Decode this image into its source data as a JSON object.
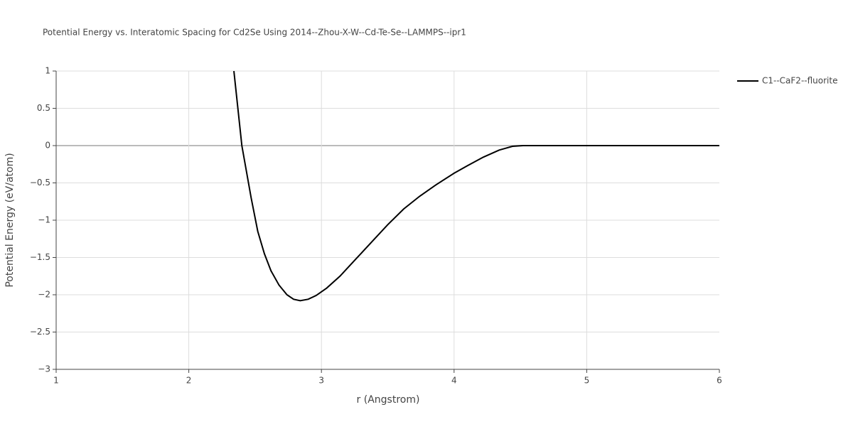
{
  "chart_data": {
    "type": "line",
    "title": "Potential Energy vs. Interatomic Spacing for Cd2Se Using 2014--Zhou-X-W--Cd-Te-Se--LAMMPS--ipr1",
    "x_label": "r (Angstrom)",
    "y_label": "Potential Energy (eV/atom)",
    "x": [
      2.34,
      2.37,
      2.4,
      2.43,
      2.47,
      2.52,
      2.57,
      2.62,
      2.68,
      2.74,
      2.79,
      2.84,
      2.9,
      2.96,
      3.04,
      3.14,
      3.26,
      3.38,
      3.5,
      3.62,
      3.74,
      3.86,
      4.0,
      4.1,
      4.22,
      4.34,
      4.44,
      4.52,
      6.0
    ],
    "series": [
      {
        "name": "C1--CaF2--fluorite",
        "color": "#000000",
        "values": [
          1.0,
          0.5,
          0.0,
          -0.3,
          -0.7,
          -1.15,
          -1.45,
          -1.68,
          -1.87,
          -2.0,
          -2.06,
          -2.08,
          -2.06,
          -2.01,
          -1.91,
          -1.75,
          -1.52,
          -1.29,
          -1.06,
          -0.85,
          -0.68,
          -0.53,
          -0.37,
          -0.27,
          -0.155,
          -0.06,
          -0.01,
          0,
          0
        ]
      }
    ],
    "xlim": [
      1,
      6
    ],
    "xticks": [
      1,
      2,
      3,
      4,
      5,
      6
    ],
    "ylim": [
      -3,
      1
    ],
    "yticks": [
      {
        "value": -3,
        "label": "−3"
      },
      {
        "value": -2.5,
        "label": "−2.5"
      },
      {
        "value": -2,
        "label": "−2"
      },
      {
        "value": -1.5,
        "label": "−1.5"
      },
      {
        "value": -1,
        "label": "−1"
      },
      {
        "value": -0.5,
        "label": "−0.5"
      },
      0,
      0.5,
      1
    ],
    "grid": true,
    "legend": "right"
  }
}
